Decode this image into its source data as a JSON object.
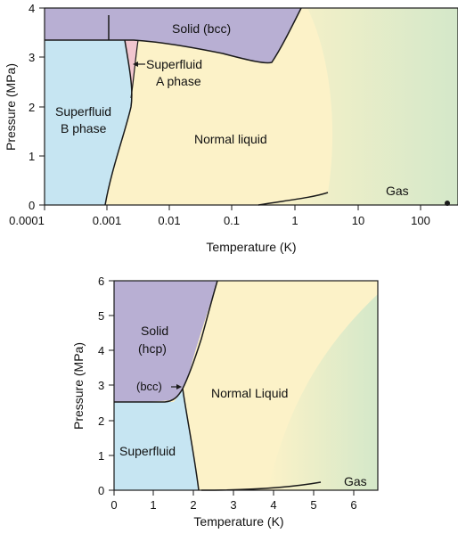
{
  "colors": {
    "solid": "#b8afd3",
    "superfluid": "#c6e5f2",
    "liquid": "#fcf2c8",
    "gas": "#d4e8c9",
    "a_phase": "#f1c6cf",
    "line": "#1a1a1a"
  },
  "chart_data": [
    {
      "type": "phase-diagram",
      "title": "",
      "xlabel": "Temperature (K)",
      "ylabel": "Pressure (MPa)",
      "x_scale": "log",
      "xlim": [
        0.0001,
        500
      ],
      "ylim": [
        0,
        4
      ],
      "x_tick_labels": [
        "0.0001",
        "0.001",
        "0.01",
        "0.1",
        "1",
        "10",
        "100"
      ],
      "y_tick_labels": [
        "0",
        "1",
        "2",
        "3",
        "4"
      ],
      "region_labels": {
        "solid": "Solid (bcc)",
        "a_phase_1": "Superfluid",
        "a_phase_2": "A phase",
        "b_phase_1": "Superfluid",
        "b_phase_2": "B phase",
        "liquid": "Normal liquid",
        "gas": "Gas"
      },
      "boundaries": {
        "melting_curve": [
          [
            0.0001,
            3.35
          ],
          [
            0.001,
            3.35
          ],
          [
            0.003,
            3.3
          ],
          [
            0.01,
            3.2
          ],
          [
            0.1,
            3.05
          ],
          [
            0.3,
            2.9
          ],
          [
            0.5,
            3.1
          ],
          [
            1,
            4.0
          ]
        ],
        "ab_transition": [
          [
            0.00088,
            0
          ],
          [
            0.0011,
            0.7
          ],
          [
            0.0015,
            1.5
          ],
          [
            0.002,
            2.1
          ],
          [
            0.0022,
            2.6
          ],
          [
            0.0024,
            3.34
          ]
        ],
        "a_phase_edge": [
          [
            0.0022,
            2.7
          ],
          [
            0.0024,
            2.95
          ],
          [
            0.0026,
            3.34
          ]
        ],
        "vapor_curve": [
          [
            0.3,
            0
          ],
          [
            1,
            0.05
          ],
          [
            2,
            0.15
          ],
          [
            3.3,
            0.27
          ]
        ],
        "solid_bcc_line": [
          [
            0.0008,
            3.35
          ],
          [
            0.0008,
            3.95
          ]
        ],
        "critical_point_dot": [
          300,
          0.05
        ]
      }
    },
    {
      "type": "phase-diagram",
      "title": "",
      "xlabel": "Temperature (K)",
      "ylabel": "Pressure (MPa)",
      "x_scale": "linear",
      "xlim": [
        0,
        6.8
      ],
      "ylim": [
        0,
        6
      ],
      "x_tick_labels": [
        "0",
        "1",
        "2",
        "3",
        "4",
        "5",
        "6"
      ],
      "y_tick_labels": [
        "0",
        "1",
        "2",
        "3",
        "4",
        "5",
        "6"
      ],
      "region_labels": {
        "solid_1": "Solid",
        "solid_2": "(hcp)",
        "bcc": "(bcc)",
        "liquid": "Normal Liquid",
        "superfluid": "Superfluid",
        "gas": "Gas"
      },
      "boundaries": {
        "melting_curve": [
          [
            0,
            2.5
          ],
          [
            1,
            2.5
          ],
          [
            1.5,
            2.55
          ],
          [
            1.75,
            2.95
          ],
          [
            2.0,
            3.5
          ],
          [
            2.8,
            6.0
          ]
        ],
        "lambda_line": [
          [
            1.76,
            2.95
          ],
          [
            1.9,
            2.3
          ],
          [
            2.0,
            1.2
          ],
          [
            2.17,
            0
          ]
        ],
        "vapor_curve": [
          [
            2.2,
            0
          ],
          [
            3,
            0.03
          ],
          [
            4,
            0.08
          ],
          [
            5.2,
            0.22
          ]
        ]
      }
    }
  ]
}
